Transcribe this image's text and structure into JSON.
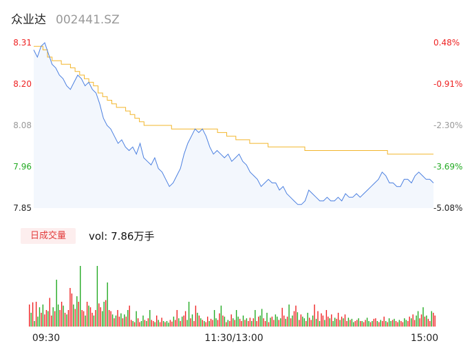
{
  "stock": {
    "name": "众业达",
    "code": "002441.SZ"
  },
  "volume_panel": {
    "badge": "日成交量",
    "vol_label": "vol:",
    "vol_value": "7.86万手"
  },
  "colors": {
    "price_line": "#4a7fe0",
    "avg_line": "#f2b52a",
    "up": "#ee2222",
    "down": "#22aa22",
    "area_fill": "#f3f7fd"
  },
  "chart_data": [
    {
      "type": "line",
      "title": "",
      "x_ticks": [
        "09:30",
        "11:30/13:00",
        "15:00"
      ],
      "y_left_ticks": [
        "8.31",
        "8.20",
        "8.08",
        "7.96",
        "7.85"
      ],
      "y_right_ticks": [
        "0.48%",
        "-0.91%",
        "-2.30%",
        "-3.69%",
        "-5.08%"
      ],
      "ylim": [
        7.85,
        8.31
      ],
      "series": [
        {
          "values": [
            8.29,
            8.27,
            8.3,
            8.31,
            8.28,
            8.25,
            8.24,
            8.22,
            8.21,
            8.19,
            8.18,
            8.2,
            8.22,
            8.21,
            8.19,
            8.2,
            8.18,
            8.17,
            8.14,
            8.1,
            8.08,
            8.07,
            8.05,
            8.03,
            8.04,
            8.02,
            8.01,
            8.02,
            8.0,
            8.03,
            7.99,
            7.98,
            7.97,
            7.99,
            7.96,
            7.95,
            7.93,
            7.91,
            7.92,
            7.94,
            7.96,
            8.0,
            8.03,
            8.05,
            8.07,
            8.06,
            8.07,
            8.05,
            8.02,
            8.0,
            8.01,
            8.0,
            7.99,
            8.0,
            7.98,
            7.99,
            8.0,
            7.98,
            7.97,
            7.95,
            7.94,
            7.93,
            7.91,
            7.92,
            7.93,
            7.92,
            7.92,
            7.9,
            7.91,
            7.89,
            7.88,
            7.87,
            7.86,
            7.86,
            7.87,
            7.9,
            7.89,
            7.88,
            7.87,
            7.87,
            7.88,
            7.87,
            7.87,
            7.88,
            7.87,
            7.89,
            7.88,
            7.88,
            7.89,
            7.88,
            7.89,
            7.9,
            7.91,
            7.92,
            7.93,
            7.95,
            7.94,
            7.92,
            7.92,
            7.91,
            7.91,
            7.93,
            7.93,
            7.92,
            7.94,
            7.95,
            7.94,
            7.93,
            7.93,
            7.92
          ]
        },
        {
          "values": [
            8.3,
            8.3,
            8.29,
            8.27,
            8.26,
            8.26,
            8.25,
            8.25,
            8.24,
            8.23,
            8.22,
            8.21,
            8.2,
            8.19,
            8.17,
            8.16,
            8.15,
            8.14,
            8.13,
            8.13,
            8.12,
            8.11,
            8.1,
            8.09,
            8.08,
            8.08,
            8.08,
            8.08,
            8.08,
            8.08,
            8.07,
            8.07,
            8.07,
            8.07,
            8.07,
            8.07,
            8.07,
            8.07,
            8.07,
            8.07,
            8.06,
            8.06,
            8.05,
            8.05,
            8.04,
            8.04,
            8.04,
            8.03,
            8.03,
            8.03,
            8.03,
            8.02,
            8.02,
            8.02,
            8.02,
            8.02,
            8.02,
            8.02,
            8.02,
            8.01,
            8.01,
            8.01,
            8.01,
            8.01,
            8.01,
            8.01,
            8.01,
            8.01,
            8.01,
            8.01,
            8.01,
            8.01,
            8.01,
            8.01,
            8.01,
            8.01,
            8.01,
            8.0,
            8.0,
            8.0,
            8.0,
            8.0,
            8.0,
            8.0,
            8.0,
            8.0,
            8.0,
            8.0
          ]
        }
      ]
    },
    {
      "type": "bar",
      "title": "",
      "values": [
        40,
        25,
        44,
        10,
        45,
        18,
        35,
        25,
        40,
        22,
        30,
        28,
        52,
        20,
        35,
        28,
        85,
        40,
        30,
        45,
        38,
        25,
        22,
        30,
        70,
        60,
        40,
        32,
        55,
        45,
        110,
        30,
        28,
        20,
        45,
        38,
        35,
        25,
        20,
        30,
        110,
        42,
        35,
        28,
        45,
        48,
        80,
        30,
        28,
        22,
        15,
        20,
        30,
        18,
        24,
        15,
        22,
        18,
        30,
        38,
        12,
        10,
        8,
        28,
        15,
        8,
        10,
        20,
        12,
        10,
        15,
        30,
        12,
        10,
        8,
        20,
        12,
        8,
        16,
        10,
        8,
        10,
        7,
        12,
        9,
        18,
        12,
        30,
        15,
        10,
        18,
        20,
        28,
        12,
        45,
        15,
        22,
        10,
        38,
        25,
        20,
        15,
        12,
        10,
        8,
        18,
        10,
        14,
        12,
        30,
        15,
        12,
        24,
        38,
        20,
        18,
        8,
        12,
        10,
        22,
        15,
        12,
        30,
        18,
        14,
        10,
        20,
        12,
        15,
        10,
        16,
        10,
        15,
        30,
        10,
        18,
        20,
        32,
        15,
        10,
        25,
        8,
        16,
        18,
        12,
        22,
        18,
        12,
        15,
        34,
        20,
        14,
        18,
        40,
        15,
        20,
        28,
        38,
        26,
        12,
        22,
        18,
        15,
        10,
        25,
        16,
        12,
        20,
        40,
        14,
        28,
        10,
        24,
        20,
        12,
        30,
        18,
        15,
        22,
        10,
        16,
        14,
        25,
        12,
        18,
        15,
        22,
        10,
        16,
        12,
        14,
        8,
        10,
        12,
        15,
        10,
        10,
        8,
        12,
        16,
        10,
        8,
        10,
        14,
        15,
        10,
        8,
        12,
        10,
        18,
        10,
        8,
        15,
        10,
        12,
        14,
        10,
        8,
        12,
        10,
        8,
        15,
        12,
        10,
        18,
        15,
        22,
        12,
        20,
        28,
        15,
        22,
        35,
        18,
        20,
        14,
        10,
        28,
        25,
        20
      ],
      "directions": [
        1,
        -1,
        1,
        -1,
        1,
        -1,
        -1,
        1,
        -1,
        1,
        1,
        -1,
        1,
        1,
        -1,
        1,
        -1,
        -1,
        1,
        1,
        -1,
        1,
        -1,
        1,
        1,
        1,
        -1,
        1,
        -1,
        1,
        -1,
        1,
        1,
        -1,
        1,
        -1,
        1,
        1,
        -1,
        1,
        -1,
        1,
        1,
        -1,
        -1,
        1,
        -1,
        1,
        1,
        -1,
        1,
        -1,
        1,
        1,
        -1,
        1,
        -1,
        1,
        -1,
        1,
        1,
        -1,
        1,
        -1,
        1,
        1,
        -1,
        -1,
        1,
        -1,
        1,
        -1,
        1,
        1,
        -1,
        1,
        -1,
        1,
        1,
        -1,
        1,
        -1,
        -1,
        1,
        1,
        -1,
        1,
        1,
        -1,
        1,
        -1,
        1,
        1,
        -1,
        -1,
        1,
        -1,
        1,
        1,
        -1,
        1,
        -1,
        1,
        -1,
        1,
        1,
        -1,
        1,
        1,
        -1,
        -1,
        1,
        1,
        -1,
        1,
        -1,
        1,
        -1,
        1,
        1,
        -1,
        1,
        -1,
        -1,
        1,
        1,
        -1,
        1,
        -1,
        1,
        1,
        -1,
        1,
        -1,
        1,
        1,
        -1,
        -1,
        1,
        1,
        -1,
        1,
        -1,
        1,
        1,
        -1,
        -1,
        1,
        -1,
        1,
        1,
        -1,
        1,
        -1,
        1,
        -1,
        1,
        1,
        -1,
        1,
        1,
        -1,
        -1,
        1,
        -1,
        1,
        1,
        -1,
        1,
        -1,
        1,
        -1,
        1,
        1,
        -1,
        1,
        1,
        -1,
        1,
        -1,
        -1,
        1,
        1,
        -1,
        1,
        -1,
        1,
        1,
        -1,
        1,
        -1,
        -1,
        1,
        1,
        -1,
        1,
        -1,
        1,
        1,
        -1,
        -1,
        1,
        -1,
        1,
        1,
        -1,
        1,
        -1,
        1,
        1,
        -1,
        1,
        -1,
        -1,
        1,
        -1,
        1,
        1,
        -1,
        1,
        1,
        -1,
        -1,
        1,
        1,
        -1,
        1,
        1,
        -1,
        -1,
        1,
        1,
        -1,
        1,
        -1,
        1,
        1,
        -1,
        1,
        1,
        -1
      ]
    }
  ]
}
